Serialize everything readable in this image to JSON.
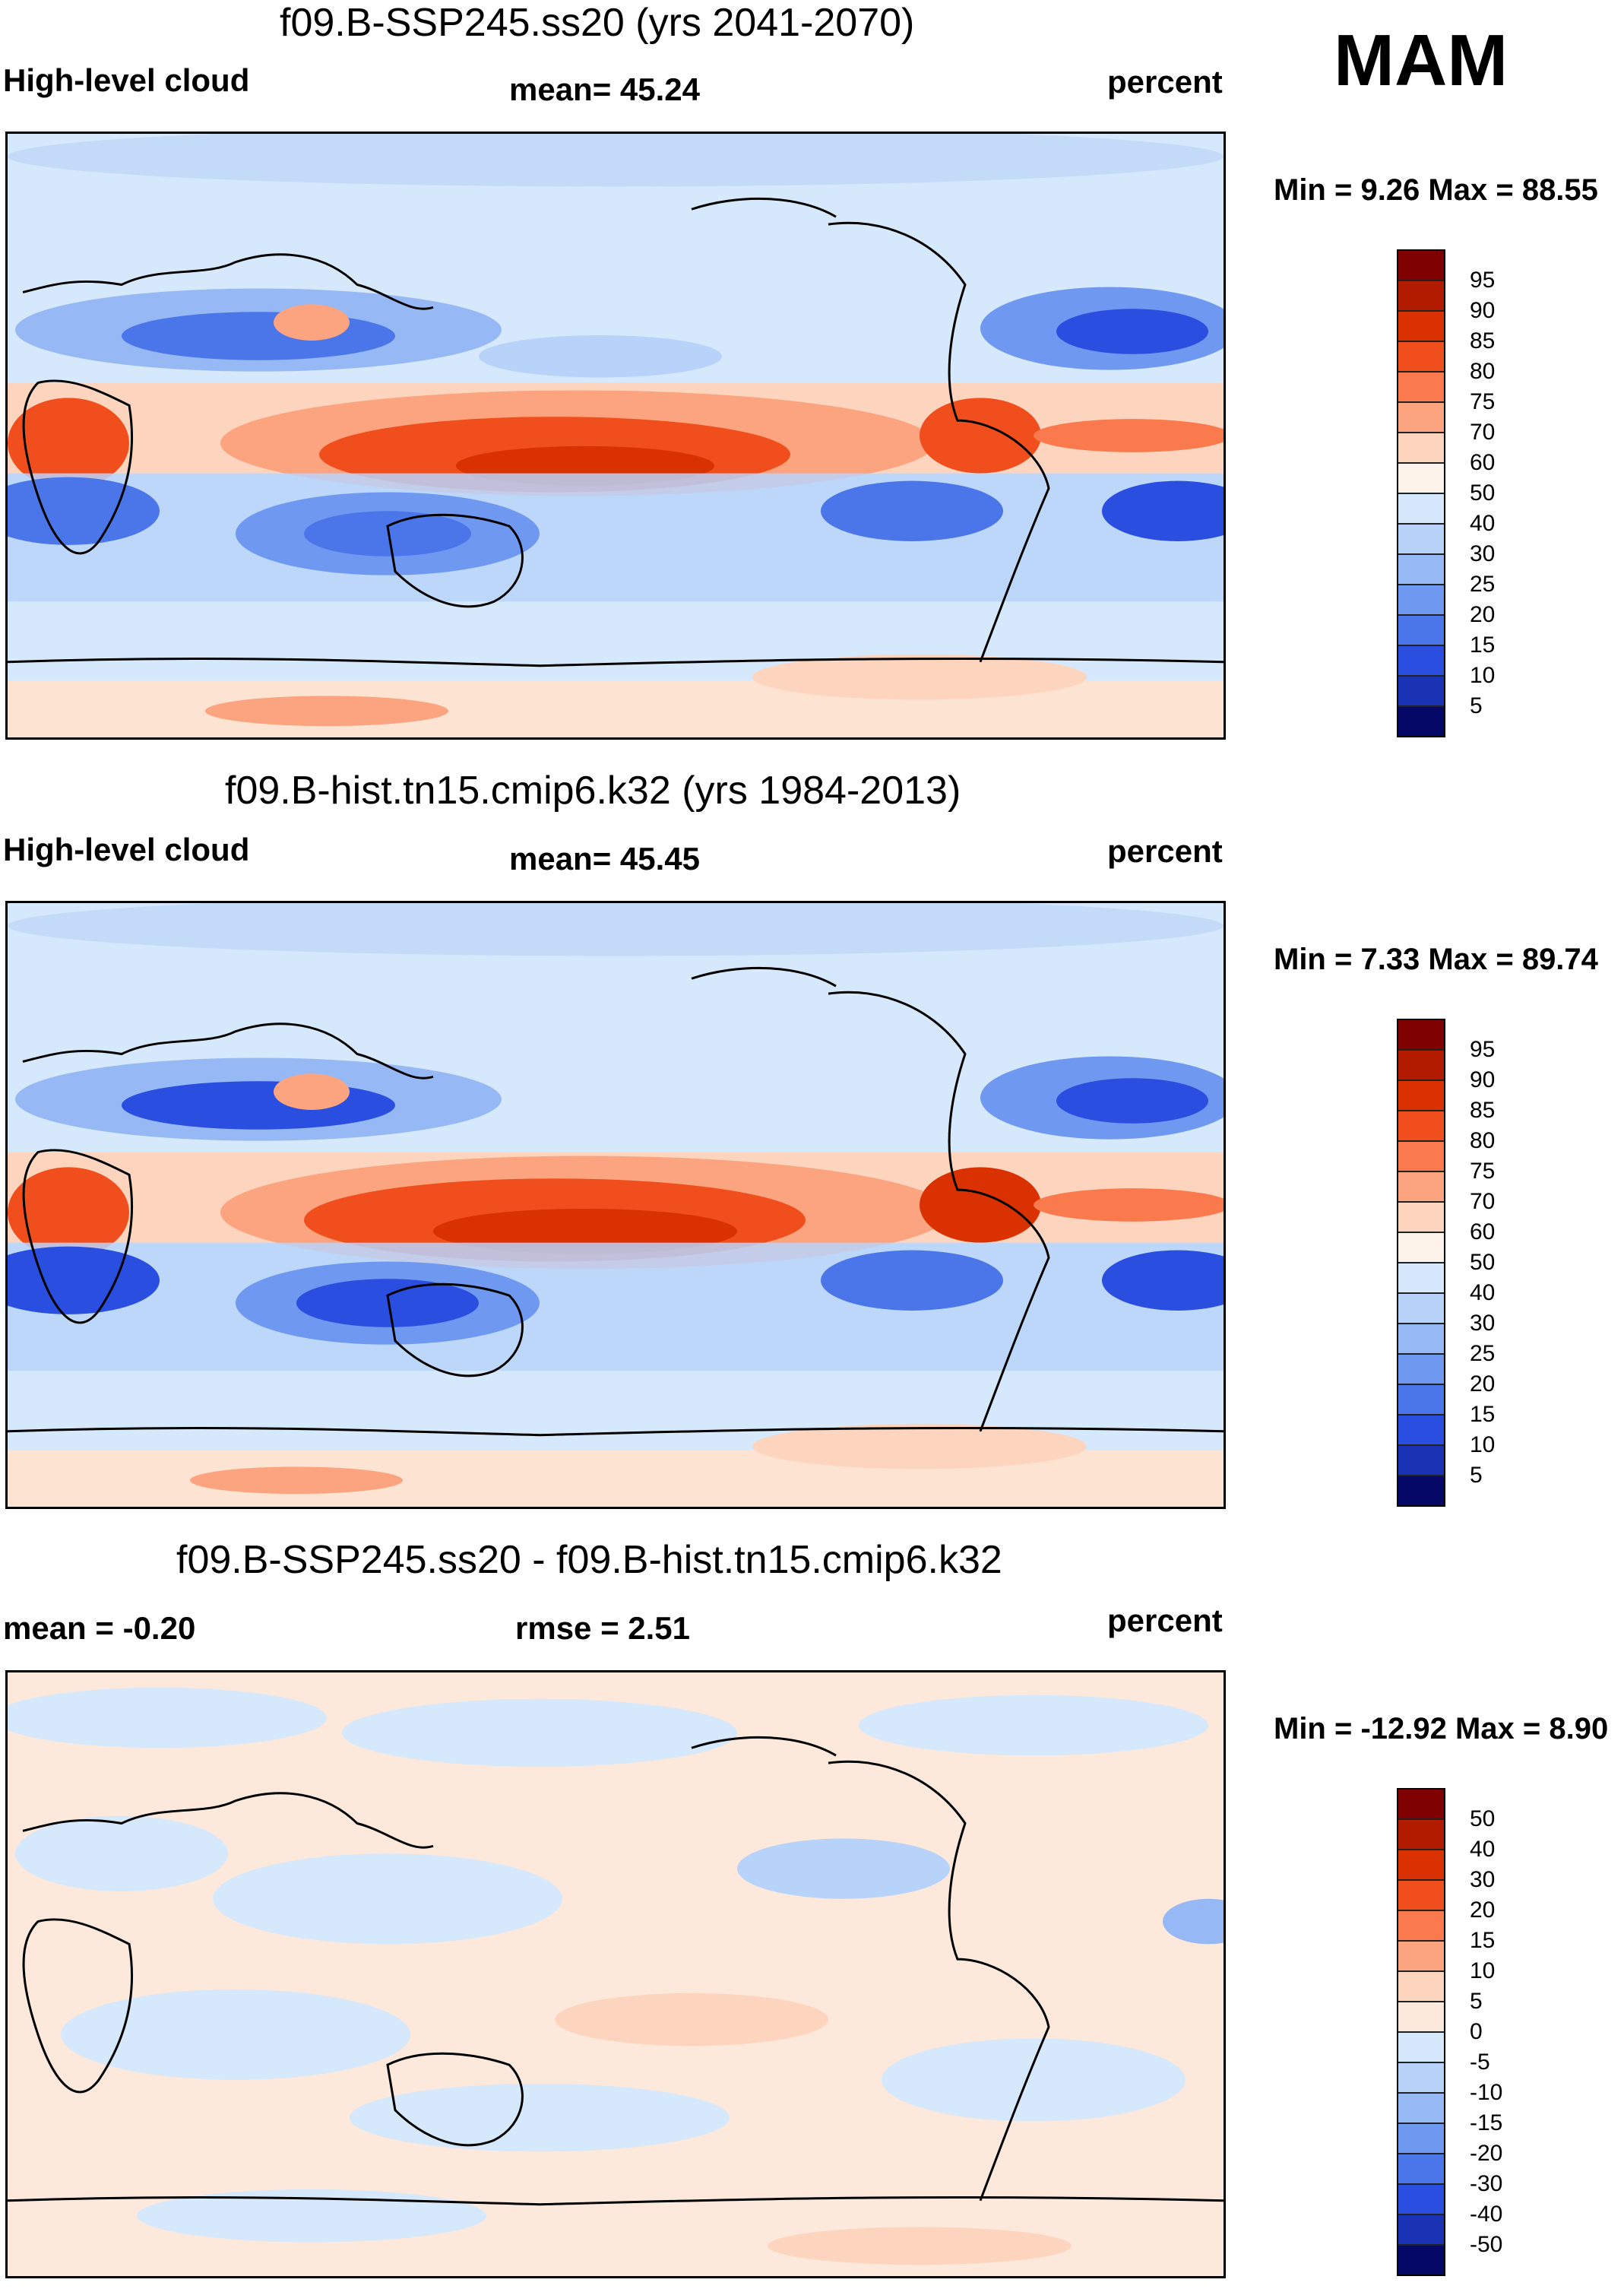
{
  "season": "MAM",
  "panels": [
    {
      "title": "f09.B-SSP245.ss20 (yrs 2041-2070)",
      "left_label": "High-level cloud",
      "center_label": "mean=  45.24",
      "right_label": "percent",
      "minmax": "Min =   9.26 Max =  88.55",
      "colorbar": {
        "labels": [
          "95",
          "90",
          "85",
          "80",
          "75",
          "70",
          "60",
          "50",
          "40",
          "30",
          "25",
          "20",
          "15",
          "10",
          "5"
        ],
        "colors": [
          "#7f0000",
          "#b31b00",
          "#d93100",
          "#f04e1c",
          "#fa7a4d",
          "#fca47f",
          "#fdd5bf",
          "#d6e8fb",
          "#b8d3fa",
          "#96b8f5",
          "#6f98f0",
          "#4a76ea",
          "#2a4fe0",
          "#1a33b5",
          "#0d1a8a",
          "#050866"
        ]
      }
    },
    {
      "title": "f09.B-hist.tn15.cmip6.k32 (yrs 1984-2013)",
      "left_label": "High-level cloud",
      "center_label": "mean=  45.45",
      "right_label": "percent",
      "minmax": "Min =   7.33 Max =  89.74",
      "colorbar": {
        "labels": [
          "95",
          "90",
          "85",
          "80",
          "75",
          "70",
          "60",
          "50",
          "40",
          "30",
          "25",
          "20",
          "15",
          "10",
          "5"
        ],
        "colors": [
          "#7f0000",
          "#b31b00",
          "#d93100",
          "#f04e1c",
          "#fa7a4d",
          "#fca47f",
          "#fdd5bf",
          "#d6e8fb",
          "#b8d3fa",
          "#96b8f5",
          "#6f98f0",
          "#4a76ea",
          "#2a4fe0",
          "#1a33b5",
          "#0d1a8a",
          "#050866"
        ]
      }
    },
    {
      "title": "f09.B-SSP245.ss20 - f09.B-hist.tn15.cmip6.k32",
      "left_label": "mean =  -0.20",
      "center_label": "rmse =   2.51",
      "right_label": "percent",
      "minmax": "Min = -12.92 Max =   8.90",
      "colorbar": {
        "labels": [
          "50",
          "40",
          "30",
          "20",
          "15",
          "10",
          "5",
          "0",
          "-5",
          "-10",
          "-15",
          "-20",
          "-30",
          "-40",
          "-50"
        ],
        "colors": [
          "#7f0000",
          "#b31b00",
          "#d93100",
          "#f04e1c",
          "#fa7a4d",
          "#fca47f",
          "#fdd5bf",
          "#fde8dc",
          "#d6e8fb",
          "#b8d3fa",
          "#96b8f5",
          "#6f98f0",
          "#4a76ea",
          "#2a4fe0",
          "#1a33b5",
          "#050866"
        ]
      }
    }
  ],
  "palette": {
    "background_blue": "#d6e8fb",
    "background_peach": "#fde3d2",
    "strong_red": "#f04e1c",
    "strong_blue": "#2a4fe0",
    "coastline": "#000000"
  }
}
